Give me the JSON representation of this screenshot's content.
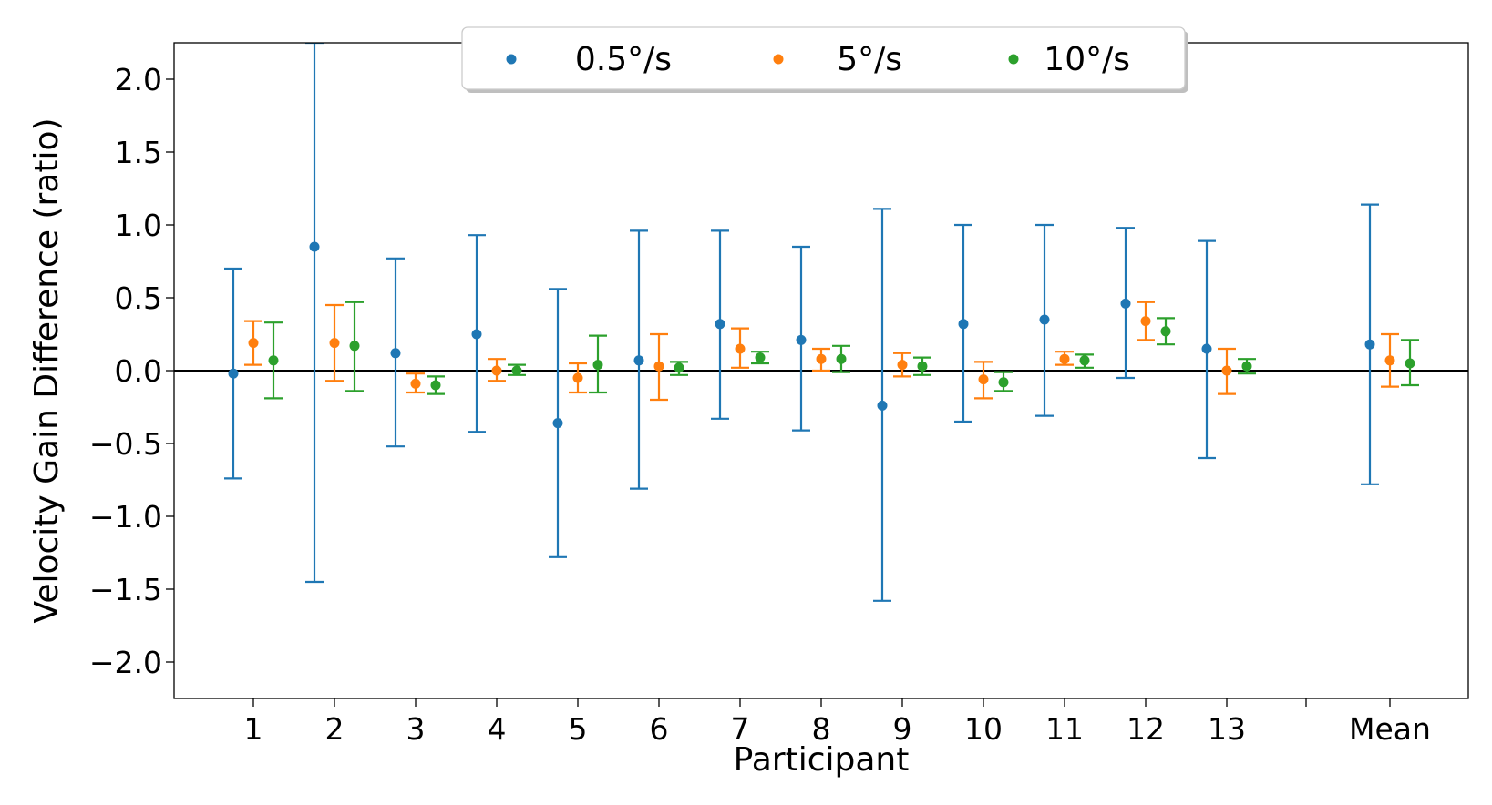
{
  "chart_data": {
    "type": "errorbar",
    "title": "",
    "xlabel": "Participant",
    "ylabel": "Velocity Gain Difference (ratio)",
    "ylim": [
      -2.25,
      2.25
    ],
    "yticks": [
      -2.0,
      -1.5,
      -1.0,
      -0.5,
      0.0,
      0.5,
      1.0,
      1.5,
      2.0
    ],
    "ytick_labels": [
      "−2.0",
      "−1.5",
      "−1.0",
      "−0.5",
      "0.0",
      "0.5",
      "1.0",
      "1.5",
      "2.0"
    ],
    "categories": [
      "1",
      "2",
      "3",
      "4",
      "5",
      "6",
      "7",
      "8",
      "9",
      "10",
      "11",
      "12",
      "13",
      "Mean"
    ],
    "reference_line_y": 0,
    "legend_position": "top-center",
    "series": [
      {
        "name": "0.5°/s",
        "color": "#1f77b4",
        "values": [
          -0.02,
          0.85,
          0.12,
          0.25,
          -0.36,
          0.07,
          0.32,
          0.21,
          -0.24,
          0.32,
          0.35,
          0.46,
          0.15,
          0.18
        ],
        "lower": [
          -0.74,
          -1.45,
          -0.52,
          -0.42,
          -1.28,
          -0.81,
          -0.33,
          -0.41,
          -1.58,
          -0.35,
          -0.31,
          -0.05,
          -0.6,
          -0.78
        ],
        "upper": [
          0.7,
          2.25,
          0.77,
          0.93,
          0.56,
          0.96,
          0.96,
          0.85,
          1.11,
          1.0,
          1.0,
          0.98,
          0.89,
          1.14
        ]
      },
      {
        "name": "5°/s",
        "color": "#ff7f0e",
        "values": [
          0.19,
          0.19,
          -0.09,
          0.0,
          -0.05,
          0.03,
          0.15,
          0.08,
          0.04,
          -0.06,
          0.08,
          0.34,
          0.0,
          0.07
        ],
        "lower": [
          0.04,
          -0.07,
          -0.15,
          -0.07,
          -0.15,
          -0.2,
          0.02,
          0.0,
          -0.04,
          -0.19,
          0.04,
          0.21,
          -0.16,
          -0.11
        ],
        "upper": [
          0.34,
          0.45,
          -0.02,
          0.08,
          0.05,
          0.25,
          0.29,
          0.15,
          0.12,
          0.06,
          0.13,
          0.47,
          0.15,
          0.25
        ]
      },
      {
        "name": "10°/s",
        "color": "#2ca02c",
        "values": [
          0.07,
          0.17,
          -0.1,
          0.0,
          0.04,
          0.02,
          0.09,
          0.08,
          0.03,
          -0.08,
          0.07,
          0.27,
          0.03,
          0.05
        ],
        "lower": [
          -0.19,
          -0.14,
          -0.16,
          -0.03,
          -0.15,
          -0.03,
          0.05,
          -0.01,
          -0.03,
          -0.14,
          0.02,
          0.18,
          -0.02,
          -0.1
        ],
        "upper": [
          0.33,
          0.47,
          -0.04,
          0.04,
          0.24,
          0.06,
          0.13,
          0.17,
          0.09,
          -0.01,
          0.11,
          0.36,
          0.08,
          0.21
        ]
      }
    ]
  }
}
